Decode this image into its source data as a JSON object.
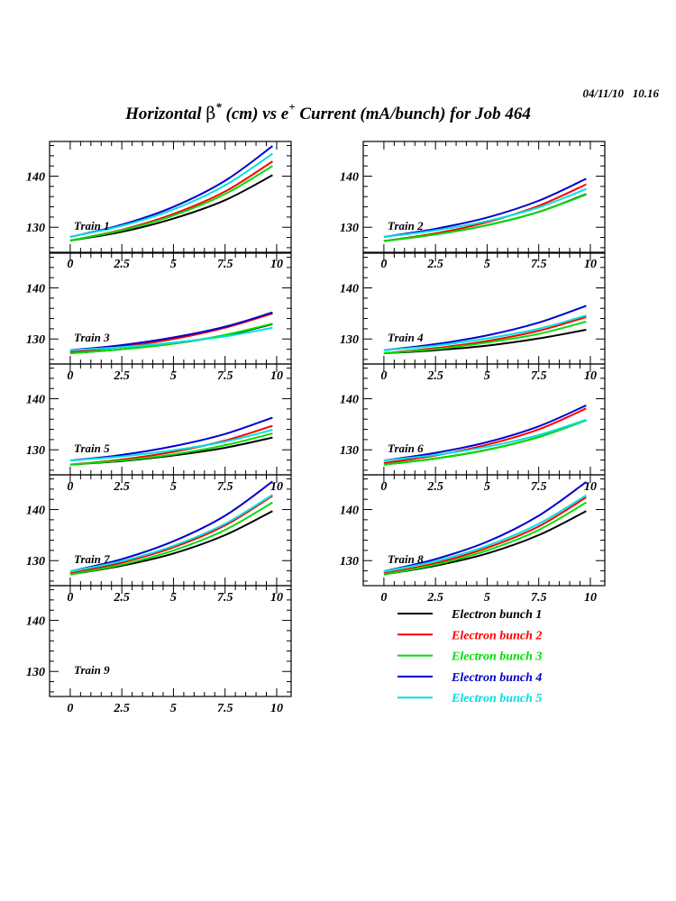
{
  "date_stamp": "04/11/10   10.16",
  "title": {
    "p1": "Horizontal ",
    "beta": "β",
    "star": "*",
    "p2": " (cm) vs e",
    "plus": "+",
    "p3": " Current (mA/bunch) for Job 464"
  },
  "chart_data": {
    "type": "line",
    "title": "Horizontal β* (cm) vs e+ Current (mA/bunch) for Job 464",
    "xlabel": "",
    "ylabel": "",
    "xlim": [
      -1,
      10.7
    ],
    "ylim": [
      125.1,
      146.8
    ],
    "xticks": [
      "0",
      "2.5",
      "5",
      "7.5",
      "10"
    ],
    "yticks": [
      "130",
      "140"
    ],
    "grid": false,
    "x": [
      0,
      2.5,
      5,
      7.5,
      9.8
    ],
    "legend": {
      "placement": "bottom-right",
      "entries": [
        {
          "name": "Electron bunch 1",
          "color": "#000000"
        },
        {
          "name": "Electron bunch 2",
          "color": "#ff0000"
        },
        {
          "name": "Electron bunch 3",
          "color": "#00dd00"
        },
        {
          "name": "Electron bunch 4",
          "color": "#0000cc"
        },
        {
          "name": "Electron bunch 5",
          "color": "#00e0e0"
        }
      ]
    },
    "panels": [
      {
        "label": "Train 1",
        "series": [
          [
            127.4,
            129.1,
            131.7,
            135.3,
            140.2
          ],
          [
            127.4,
            129.5,
            132.6,
            137.0,
            142.9
          ],
          [
            127.4,
            129.4,
            132.3,
            136.5,
            142.0
          ],
          [
            128.1,
            130.5,
            134.0,
            139.1,
            145.9
          ],
          [
            128.1,
            130.3,
            133.5,
            138.2,
            144.4
          ]
        ]
      },
      {
        "label": "Train 2",
        "series": [
          [
            127.3,
            128.6,
            130.4,
            133.0,
            136.5
          ],
          [
            127.3,
            128.8,
            131.0,
            134.2,
            138.4
          ],
          [
            127.3,
            128.6,
            130.4,
            133.0,
            136.4
          ],
          [
            128.1,
            129.7,
            131.9,
            135.2,
            139.5
          ],
          [
            128.1,
            129.4,
            131.2,
            133.9,
            137.5
          ]
        ]
      },
      {
        "label": "Train 3",
        "series": [
          [
            127.2,
            128.0,
            129.1,
            130.7,
            132.9
          ],
          [
            127.5,
            128.5,
            130.0,
            132.2,
            135.0
          ],
          [
            127.2,
            128.0,
            129.1,
            130.8,
            133.0
          ],
          [
            127.8,
            128.8,
            130.3,
            132.4,
            135.2
          ],
          [
            127.8,
            128.4,
            129.3,
            130.5,
            132.2
          ]
        ]
      },
      {
        "label": "Train 4",
        "series": [
          [
            127.2,
            127.8,
            128.7,
            130.1,
            131.8
          ],
          [
            127.2,
            128.2,
            129.6,
            131.6,
            134.3
          ],
          [
            127.2,
            128.0,
            129.3,
            131.0,
            133.4
          ],
          [
            127.8,
            129.0,
            130.7,
            133.2,
            136.5
          ],
          [
            127.8,
            128.7,
            130.1,
            132.0,
            134.6
          ]
        ]
      },
      {
        "label": "Train 5",
        "series": [
          [
            127.1,
            127.8,
            128.9,
            130.4,
            132.4
          ],
          [
            127.1,
            128.1,
            129.6,
            131.8,
            134.7
          ],
          [
            127.1,
            127.9,
            129.1,
            130.9,
            133.2
          ],
          [
            127.9,
            129.0,
            130.7,
            133.1,
            136.3
          ],
          [
            127.9,
            128.7,
            129.9,
            131.6,
            133.9
          ]
        ]
      },
      {
        "label": "Train 6",
        "series": [
          [
            127.1,
            128.3,
            130.0,
            132.5,
            135.8
          ],
          [
            127.4,
            128.9,
            131.0,
            134.0,
            138.1
          ],
          [
            127.1,
            128.3,
            130.0,
            132.5,
            135.8
          ],
          [
            127.9,
            129.4,
            131.5,
            134.6,
            138.7
          ],
          [
            127.9,
            129.0,
            130.6,
            132.9,
            135.9
          ]
        ]
      },
      {
        "label": "Train 7",
        "series": [
          [
            127.3,
            129.0,
            131.4,
            135.0,
            139.7
          ],
          [
            127.5,
            129.6,
            132.6,
            136.9,
            142.7
          ],
          [
            127.3,
            129.2,
            132.0,
            136.0,
            141.4
          ],
          [
            127.9,
            130.3,
            133.8,
            138.8,
            145.5
          ],
          [
            127.9,
            129.9,
            132.9,
            137.2,
            142.9
          ]
        ]
      },
      {
        "label": "Train 8",
        "series": [
          [
            127.3,
            129.0,
            131.4,
            135.0,
            139.7
          ],
          [
            127.5,
            129.5,
            132.5,
            136.7,
            142.4
          ],
          [
            127.3,
            129.2,
            132.0,
            136.0,
            141.4
          ],
          [
            127.9,
            130.3,
            133.7,
            138.8,
            145.4
          ],
          [
            127.9,
            129.9,
            132.9,
            137.2,
            142.8
          ]
        ]
      },
      {
        "label": "Train 9",
        "series": []
      }
    ]
  }
}
